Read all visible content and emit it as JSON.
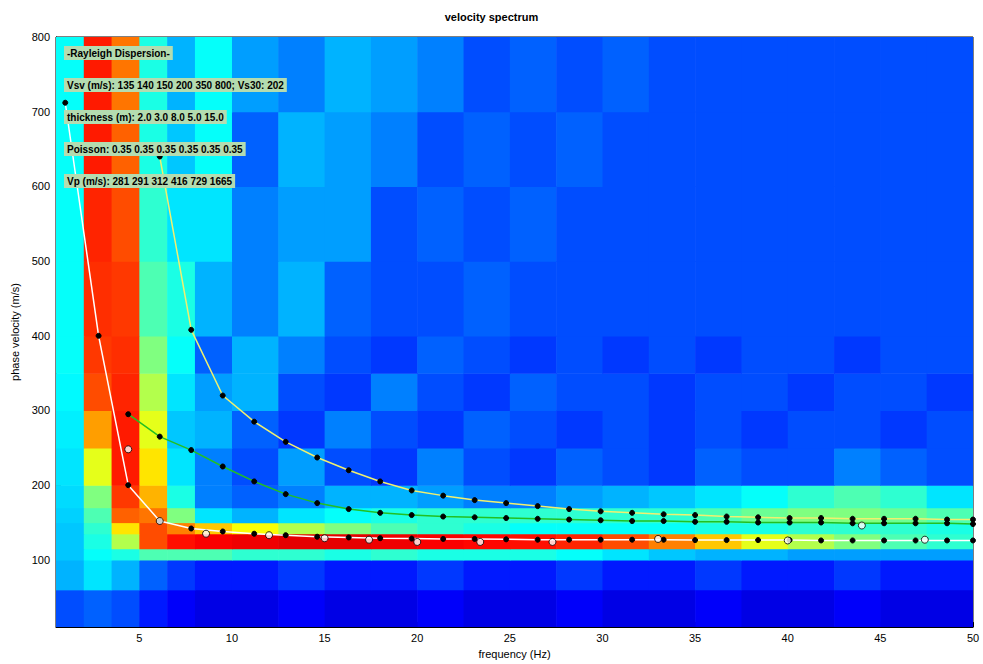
{
  "chart_data": {
    "type": "heatmap",
    "title": "velocity spectrum",
    "x_label": "frequency (Hz)",
    "y_label": "phase velocity (m/s)",
    "xlim": [
      0.5,
      50
    ],
    "xticks": [
      5,
      10,
      15,
      20,
      25,
      30,
      35,
      40,
      45,
      50
    ],
    "ylim": [
      10,
      800
    ],
    "yticks": [
      100,
      200,
      300,
      400,
      500,
      600,
      700,
      800
    ],
    "grid": false,
    "annotations": [
      "-Rayleigh Dispersion-",
      "Vsv (m/s): 135 140 150 200 350 800; Vs30: 202",
      "thickness (m): 2.0 3.0 8.0 5.0 15.0",
      "Poisson: 0.35 0.35 0.35 0.35 0.35 0.35",
      "Vp (m/s): 281 291 312 416 729 1665"
    ],
    "spectrum": {
      "frequency_bins": [
        0.5,
        2,
        3.5,
        5,
        6.5,
        8,
        10,
        12.5,
        15,
        17.5,
        20,
        22.5,
        25,
        27.5,
        30,
        32.5,
        35,
        37.5,
        40,
        42.5,
        45,
        47.5,
        50
      ],
      "velocity_bins": [
        10,
        60,
        100,
        115,
        135,
        150,
        170,
        200,
        250,
        300,
        350,
        400,
        500,
        600,
        700,
        800
      ],
      "zlim": [
        0,
        1
      ],
      "cells": [
        [
          0.2,
          0.22,
          0.2,
          0.15,
          0.12,
          0.1,
          0.1,
          0.12,
          0.1,
          0.1,
          0.12,
          0.1,
          0.1,
          0.12,
          0.1,
          0.1,
          0.12,
          0.1,
          0.1,
          0.12,
          0.1,
          0.1
        ],
        [
          0.3,
          0.35,
          0.3,
          0.22,
          0.18,
          0.15,
          0.15,
          0.18,
          0.15,
          0.15,
          0.18,
          0.15,
          0.15,
          0.18,
          0.15,
          0.15,
          0.18,
          0.15,
          0.15,
          0.18,
          0.15,
          0.15
        ],
        [
          0.32,
          0.38,
          0.4,
          0.45,
          0.45,
          0.45,
          0.42,
          0.42,
          0.4,
          0.42,
          0.4,
          0.4,
          0.4,
          0.38,
          0.35,
          0.32,
          0.3,
          0.3,
          0.28,
          0.28,
          0.28,
          0.28
        ],
        [
          0.32,
          0.4,
          0.55,
          0.8,
          0.86,
          0.88,
          0.89,
          0.9,
          0.9,
          0.89,
          0.88,
          0.87,
          0.86,
          0.84,
          0.8,
          0.75,
          0.68,
          0.6,
          0.55,
          0.5,
          0.45,
          0.42
        ],
        [
          0.32,
          0.42,
          0.65,
          0.8,
          0.75,
          0.68,
          0.62,
          0.55,
          0.5,
          0.45,
          0.42,
          0.4,
          0.38,
          0.38,
          0.38,
          0.38,
          0.4,
          0.4,
          0.42,
          0.42,
          0.42,
          0.4
        ],
        [
          0.33,
          0.45,
          0.78,
          0.76,
          0.5,
          0.35,
          0.3,
          0.35,
          0.38,
          0.4,
          0.42,
          0.42,
          0.42,
          0.42,
          0.42,
          0.42,
          0.45,
          0.48,
          0.5,
          0.5,
          0.48,
          0.45
        ],
        [
          0.34,
          0.5,
          0.82,
          0.7,
          0.4,
          0.25,
          0.22,
          0.25,
          0.3,
          0.3,
          0.28,
          0.25,
          0.25,
          0.28,
          0.3,
          0.32,
          0.35,
          0.38,
          0.42,
          0.45,
          0.42,
          0.35
        ],
        [
          0.35,
          0.6,
          0.85,
          0.65,
          0.35,
          0.25,
          0.2,
          0.28,
          0.2,
          0.18,
          0.25,
          0.2,
          0.18,
          0.22,
          0.2,
          0.18,
          0.22,
          0.2,
          0.2,
          0.25,
          0.22,
          0.2
        ],
        [
          0.36,
          0.72,
          0.85,
          0.6,
          0.32,
          0.3,
          0.22,
          0.18,
          0.25,
          0.2,
          0.18,
          0.22,
          0.2,
          0.18,
          0.2,
          0.18,
          0.2,
          0.18,
          0.2,
          0.2,
          0.18,
          0.2
        ],
        [
          0.37,
          0.8,
          0.84,
          0.55,
          0.35,
          0.28,
          0.3,
          0.2,
          0.18,
          0.25,
          0.2,
          0.18,
          0.22,
          0.2,
          0.2,
          0.18,
          0.2,
          0.2,
          0.18,
          0.2,
          0.2,
          0.18
        ],
        [
          0.38,
          0.82,
          0.83,
          0.5,
          0.38,
          0.22,
          0.3,
          0.25,
          0.2,
          0.18,
          0.22,
          0.2,
          0.18,
          0.2,
          0.18,
          0.2,
          0.18,
          0.2,
          0.2,
          0.18,
          0.2,
          0.2
        ],
        [
          0.38,
          0.83,
          0.82,
          0.45,
          0.4,
          0.3,
          0.25,
          0.3,
          0.22,
          0.2,
          0.2,
          0.22,
          0.2,
          0.2,
          0.2,
          0.2,
          0.2,
          0.2,
          0.2,
          0.2,
          0.2,
          0.2
        ],
        [
          0.38,
          0.84,
          0.8,
          0.42,
          0.35,
          0.35,
          0.25,
          0.28,
          0.28,
          0.2,
          0.22,
          0.2,
          0.22,
          0.2,
          0.2,
          0.2,
          0.2,
          0.2,
          0.2,
          0.2,
          0.2,
          0.2
        ],
        [
          0.38,
          0.85,
          0.78,
          0.4,
          0.32,
          0.38,
          0.22,
          0.3,
          0.28,
          0.25,
          0.2,
          0.22,
          0.2,
          0.22,
          0.2,
          0.2,
          0.2,
          0.2,
          0.2,
          0.2,
          0.2,
          0.2
        ],
        [
          0.38,
          0.85,
          0.76,
          0.4,
          0.3,
          0.38,
          0.28,
          0.25,
          0.3,
          0.28,
          0.25,
          0.2,
          0.22,
          0.2,
          0.22,
          0.2,
          0.2,
          0.2,
          0.2,
          0.2,
          0.2,
          0.2
        ]
      ]
    },
    "series": [
      {
        "type": "line",
        "color": "#f0f070",
        "marker": "dot",
        "x": [
          6.1,
          7.8,
          9.5,
          11.2,
          12.9,
          14.6,
          16.3,
          18,
          19.7,
          21.4,
          23.1,
          24.8,
          26.5,
          28.2,
          29.9,
          31.6,
          33.3,
          35,
          36.7,
          38.4,
          40.1,
          41.8,
          43.5,
          45.2,
          46.9,
          48.6,
          50
        ],
        "values": [
          640,
          408,
          320,
          285,
          258,
          237,
          220,
          205,
          193,
          186,
          180,
          176,
          172,
          168,
          165,
          163,
          161,
          160,
          158,
          157,
          156,
          156,
          155,
          155,
          155,
          154,
          154
        ]
      },
      {
        "type": "line",
        "color": "#22c022",
        "marker": "dot",
        "x": [
          4.4,
          6.1,
          7.8,
          9.5,
          11.2,
          12.9,
          14.6,
          16.3,
          18,
          19.7,
          21.4,
          23.1,
          24.8,
          26.5,
          28.2,
          29.9,
          31.6,
          33.3,
          35,
          36.7,
          38.4,
          40.1,
          41.8,
          43.5,
          45.2,
          46.9,
          48.6,
          50
        ],
        "values": [
          295,
          265,
          247,
          225,
          205,
          188,
          176,
          168,
          163,
          160,
          158,
          157,
          156,
          155,
          154,
          153,
          152,
          152,
          151,
          151,
          150,
          150,
          150,
          149,
          149,
          149,
          149,
          148
        ]
      },
      {
        "type": "line",
        "color": "#ffffff",
        "marker": "dot",
        "x": [
          1,
          2.8,
          4.4,
          6.1,
          7.8,
          9.5,
          11.2,
          12.9,
          14.6,
          16.3,
          18,
          19.7,
          21.4,
          23.1,
          24.8,
          26.5,
          28.2,
          29.9,
          31.6,
          33.3,
          35,
          36.7,
          38.4,
          40.1,
          41.8,
          43.5,
          45.2,
          46.9,
          48.6,
          50
        ],
        "values": [
          712,
          400,
          200,
          152,
          142,
          138,
          135,
          133,
          131,
          130,
          129,
          128.5,
          128,
          128,
          127.5,
          127,
          127,
          127,
          127,
          127,
          126.5,
          126.5,
          126.5,
          126.5,
          126,
          126,
          126,
          126,
          126,
          126
        ]
      },
      {
        "type": "scatter",
        "color": "#ffffff",
        "marker": "open_circle",
        "x": [
          4.4,
          6.1,
          8.6,
          12,
          15,
          17.4,
          20,
          23.4,
          27.3,
          33,
          40,
          44,
          47.4
        ],
        "values": [
          248,
          152,
          135,
          133,
          129,
          127,
          124,
          124,
          124,
          128,
          126,
          146,
          127
        ]
      }
    ]
  }
}
